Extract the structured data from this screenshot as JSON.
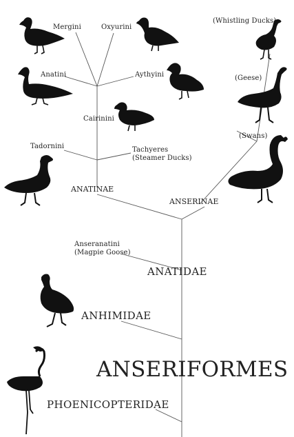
{
  "title": "ANSERIFORMES",
  "families": {
    "anatidae": "ANATIDAE",
    "anhimidae": "ANHIMIDAE",
    "phoenicopteridae": "PHOENICOPTERIDAE"
  },
  "subfamilies": {
    "anatinae": "ANATINAE",
    "anserinae": "ANSERINAE",
    "anseranatini": [
      "Anseranatini",
      "(Magpie Goose)"
    ]
  },
  "tribes": {
    "mergini": "Mergini",
    "oxyurini": "Oxyurini",
    "anatini": "Anatini",
    "aythyini": "Aythyini",
    "cairinini": "Cairinini",
    "tadornini": "Tadornini",
    "tachyeres": [
      "Tachyeres",
      "(Steamer Ducks)"
    ]
  },
  "groups": {
    "whistling": "(Whistling Ducks)",
    "geese": "(Geese)",
    "swans": "(Swans)"
  },
  "colors": {
    "line": "#555555",
    "silhouette": "#111111",
    "background": "#ffffff"
  }
}
